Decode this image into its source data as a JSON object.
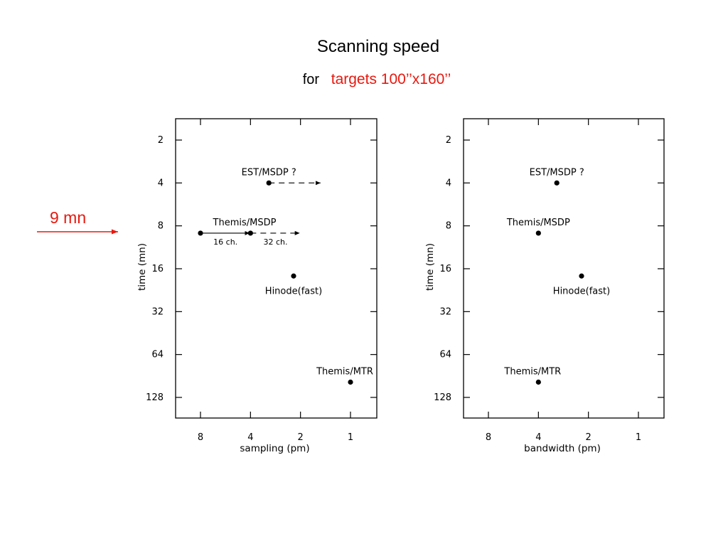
{
  "slide": {
    "title": "Scanning speed",
    "subtitle_prefix": "for",
    "subtitle_highlight": "targets 100’’x160’’",
    "arrow_label": "9 mn",
    "accent_color": "#e8190f"
  },
  "chart_data": [
    {
      "type": "scatter",
      "xlabel": "sampling (pm)",
      "ylabel": "time (mn)",
      "x_scale": "log2-reversed",
      "y_scale": "log2-reversed",
      "x_ticks": [
        8,
        4,
        2,
        1
      ],
      "y_ticks": [
        2,
        4,
        8,
        16,
        32,
        64,
        128
      ],
      "grid": false,
      "points": [
        {
          "label": "EST/MSDP  ?",
          "x": 3.1,
          "y": 4
        },
        {
          "label": "Themis/MSDP",
          "x": 8,
          "y": 9
        },
        {
          "label": "",
          "x": 4,
          "y": 9
        },
        {
          "label": "Hinode(fast)",
          "x": 2.2,
          "y": 18
        },
        {
          "label": "Themis/MTR",
          "x": 1,
          "y": 100
        }
      ],
      "lines": [
        {
          "from": [
            3.1,
            4
          ],
          "to": [
            1.5,
            4
          ],
          "style": "dashed",
          "arrow": true
        },
        {
          "from": [
            8,
            9
          ],
          "to": [
            4,
            9
          ],
          "style": "solid",
          "arrow": true,
          "note": "16 ch."
        },
        {
          "from": [
            4,
            9
          ],
          "to": [
            2,
            9
          ],
          "style": "dashed",
          "arrow": true,
          "note": "32 ch."
        }
      ]
    },
    {
      "type": "scatter",
      "xlabel": "bandwidth (pm)",
      "ylabel": "time (mn)",
      "x_scale": "log2-reversed",
      "y_scale": "log2-reversed",
      "x_ticks": [
        8,
        4,
        2,
        1
      ],
      "y_ticks": [
        2,
        4,
        8,
        16,
        32,
        64,
        128
      ],
      "grid": false,
      "points": [
        {
          "label": "EST/MSDP  ?",
          "x": 3.1,
          "y": 4
        },
        {
          "label": "Themis/MSDP",
          "x": 4,
          "y": 9
        },
        {
          "label": "Hinode(fast)",
          "x": 2.2,
          "y": 18
        },
        {
          "label": "Themis/MTR",
          "x": 4,
          "y": 100
        }
      ],
      "lines": []
    }
  ]
}
